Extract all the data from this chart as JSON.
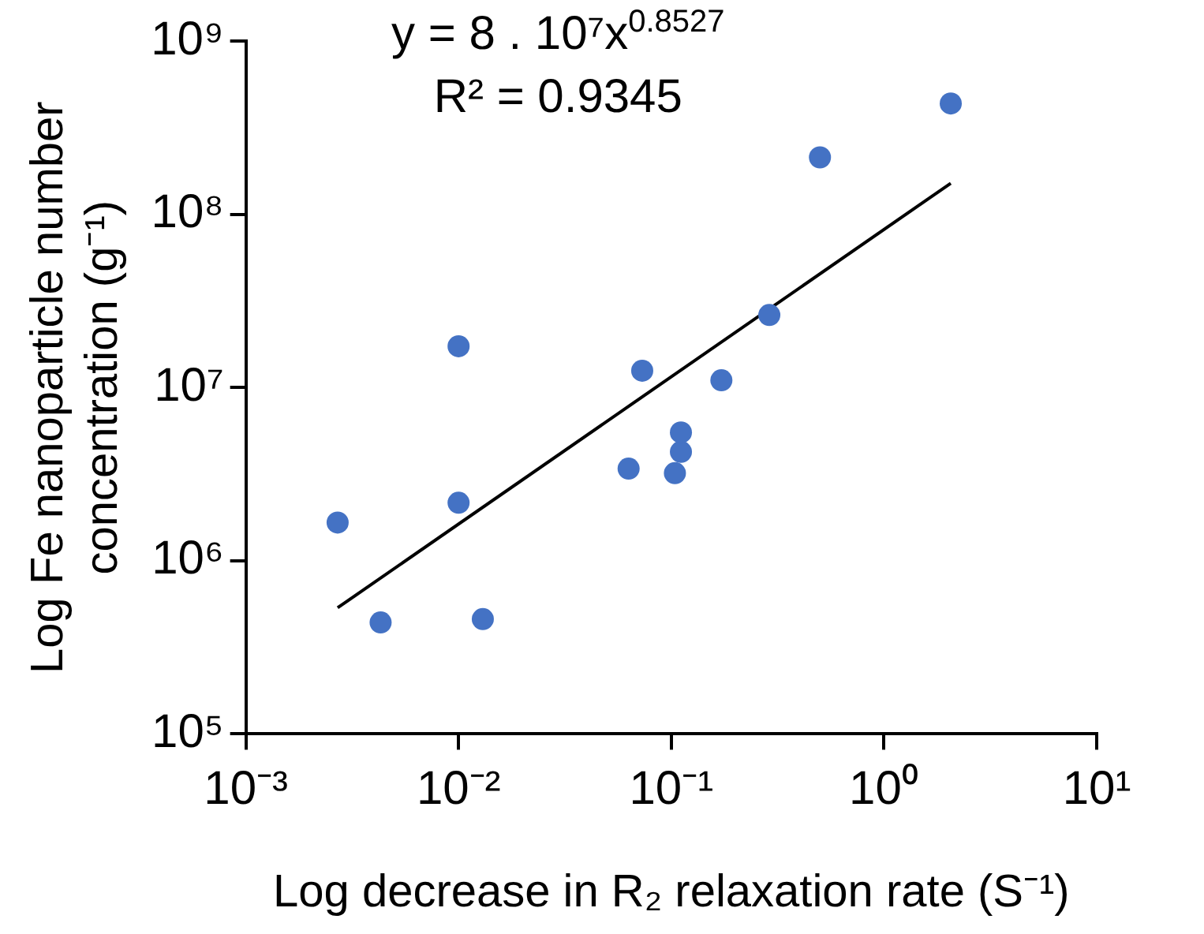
{
  "chart_data": {
    "type": "scatter",
    "xlabel": "Log decrease in R₂ relaxation rate (S⁻¹)",
    "ylabel": "Log Fe nanoparticle number concentration (g⁻¹)",
    "log": "xy",
    "grid": false,
    "legend": false,
    "marker": "circle",
    "xlim": [
      0.001,
      10
    ],
    "ylim": [
      100000,
      1000000000
    ],
    "xticks": [
      {
        "value": 0.001,
        "label": "10⁻³"
      },
      {
        "value": 0.01,
        "label": "10⁻²"
      },
      {
        "value": 0.1,
        "label": "10⁻¹"
      },
      {
        "value": 1,
        "label": "10⁰"
      },
      {
        "value": 10,
        "label": "10¹"
      }
    ],
    "yticks": [
      {
        "value": 100000,
        "label": "10⁵"
      },
      {
        "value": 1000000,
        "label": "10⁶"
      },
      {
        "value": 10000000,
        "label": "10⁷"
      },
      {
        "value": 100000000,
        "label": "10⁸"
      },
      {
        "value": 1000000000,
        "label": "10⁹"
      }
    ],
    "annotations": [
      "y =  8 . 10⁷x$^{0.8527}$",
      "R² = 0.9345"
    ],
    "series": [
      {
        "color": "#4472c4",
        "x": [
          0.0027,
          0.0043,
          0.01,
          0.01,
          0.013,
          0.063,
          0.073,
          0.104,
          0.111,
          0.111,
          0.172,
          0.289,
          0.5,
          2.06
        ],
        "values": [
          1660000,
          440000,
          17300000,
          2160000,
          460000,
          3400000,
          12500000,
          3200000,
          4250000,
          5500000,
          11000000,
          26200000,
          213000000,
          436000000
        ]
      },
      {
        "type": "line",
        "color": "#000000",
        "marker": "none",
        "x": [
          0.0027,
          2.06
        ],
        "values": [
          535000,
          151000000
        ]
      }
    ]
  }
}
